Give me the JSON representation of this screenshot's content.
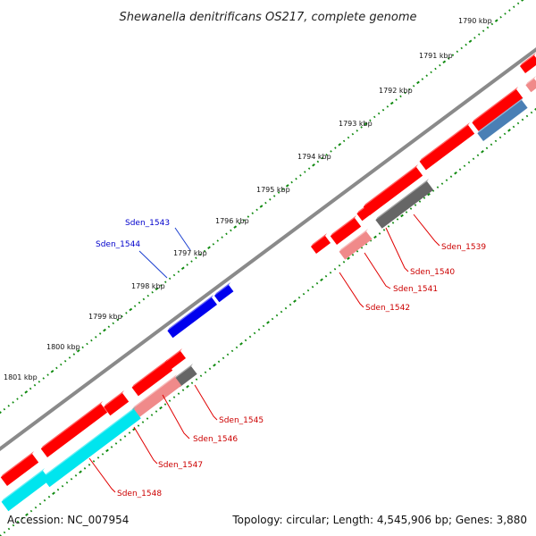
{
  "title": "Shewanella denitrificans OS217, complete genome",
  "accession": "Accession: NC_007954",
  "topology": "Topology: circular; Length: 4,545,906 bp; Genes: 3,880",
  "kbp_labels": [
    "1790 kbp",
    "1791 kbp",
    "1792 kbp",
    "1793 kbp",
    "1794 kbp",
    "1795 kbp",
    "1796 kbp",
    "1797 kbp",
    "1798 kbp",
    "1799 kbp",
    "1800 kbp",
    "1801 kbp"
  ],
  "genes_outer": [
    {
      "label": "Sden_1543",
      "color": "#0000cc"
    },
    {
      "label": "Sden_1544",
      "color": "#0000cc"
    }
  ],
  "genes_inner": [
    {
      "label": "Sden_1539",
      "color": "#cc0000"
    },
    {
      "label": "Sden_1540",
      "color": "#cc0000"
    },
    {
      "label": "Sden_1541",
      "color": "#cc0000"
    },
    {
      "label": "Sden_1542",
      "color": "#cc0000"
    },
    {
      "label": "Sden_1545",
      "color": "#cc0000"
    },
    {
      "label": "Sden_1546",
      "color": "#cc0000"
    },
    {
      "label": "Sden_1547",
      "color": "#cc0000"
    },
    {
      "label": "Sden_1548",
      "color": "#cc0000"
    }
  ],
  "colors": {
    "red": "#ff0000",
    "pink": "#f08a8a",
    "gray": "#666666",
    "blue": "#0000ee",
    "cyan": "#00e5ee",
    "steelblue": "#4a7fb5",
    "backbone": "#8a8a8a",
    "tick": "#0f8a0f"
  }
}
